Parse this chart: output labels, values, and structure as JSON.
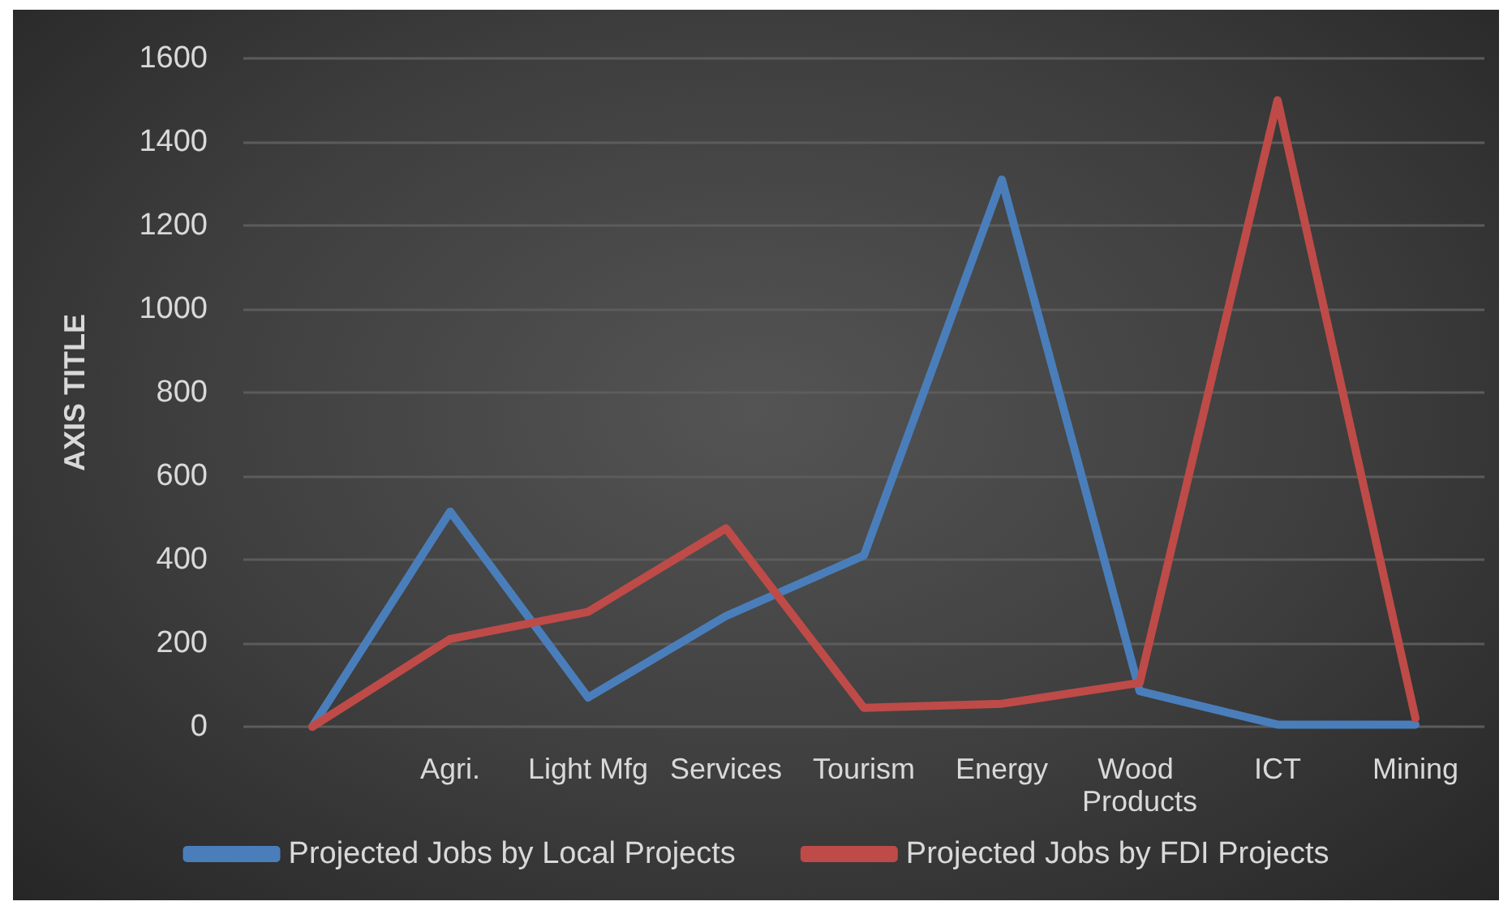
{
  "chart_data": {
    "type": "line",
    "ylabel": "AXIS TITLE",
    "categories": [
      null,
      "Agri.",
      "Light Mfg",
      "Services",
      "Tourism",
      "Energy",
      "Wood Products",
      "ICT",
      "Mining"
    ],
    "series": [
      {
        "name": "Projected Jobs by Local Projects",
        "color": "#4a7ebb",
        "values": [
          0,
          515,
          70,
          265,
          410,
          1310,
          85,
          5,
          5
        ]
      },
      {
        "name": "Projected Jobs by FDI Projects",
        "color": "#be4b48",
        "values": [
          0,
          210,
          275,
          475,
          45,
          55,
          105,
          1500,
          20
        ]
      }
    ],
    "ylim": [
      0,
      1600
    ],
    "yticks": [
      0,
      200,
      400,
      600,
      800,
      1000,
      1200,
      1400,
      1600
    ],
    "grid": "y",
    "legend": "bottom",
    "marker": "none",
    "line_style": "solid"
  }
}
